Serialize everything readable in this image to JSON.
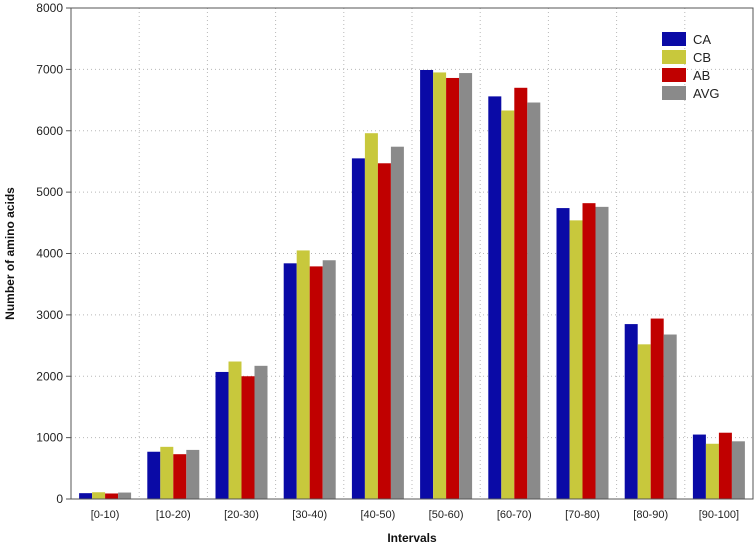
{
  "chart_data": {
    "type": "bar",
    "title": "",
    "xlabel": "Intervals",
    "ylabel": "Number of amino acids",
    "ylim": [
      0,
      8000
    ],
    "yticks": [
      0,
      1000,
      2000,
      3000,
      4000,
      5000,
      6000,
      7000,
      8000
    ],
    "grid": true,
    "legend_position": "top-right",
    "categories": [
      "[0-10)",
      "[10-20)",
      "[20-30)",
      "[30-40)",
      "[40-50)",
      "[50-60)",
      "[60-70)",
      "[70-80)",
      "[80-90)",
      "[90-100]"
    ],
    "series": [
      {
        "name": "CA",
        "color": "#0a0aa6",
        "values": [
          95,
          770,
          2070,
          3840,
          5550,
          6990,
          6560,
          4740,
          2850,
          1050
        ]
      },
      {
        "name": "CB",
        "color": "#c8c83c",
        "values": [
          110,
          850,
          2240,
          4050,
          5960,
          6950,
          6330,
          4540,
          2520,
          900
        ]
      },
      {
        "name": "AB",
        "color": "#c00000",
        "values": [
          90,
          730,
          2000,
          3790,
          5470,
          6860,
          6700,
          4820,
          2940,
          1080
        ]
      },
      {
        "name": "AVG",
        "color": "#8a8a8a",
        "values": [
          105,
          800,
          2170,
          3890,
          5740,
          6940,
          6460,
          4760,
          2680,
          940
        ]
      }
    ]
  }
}
